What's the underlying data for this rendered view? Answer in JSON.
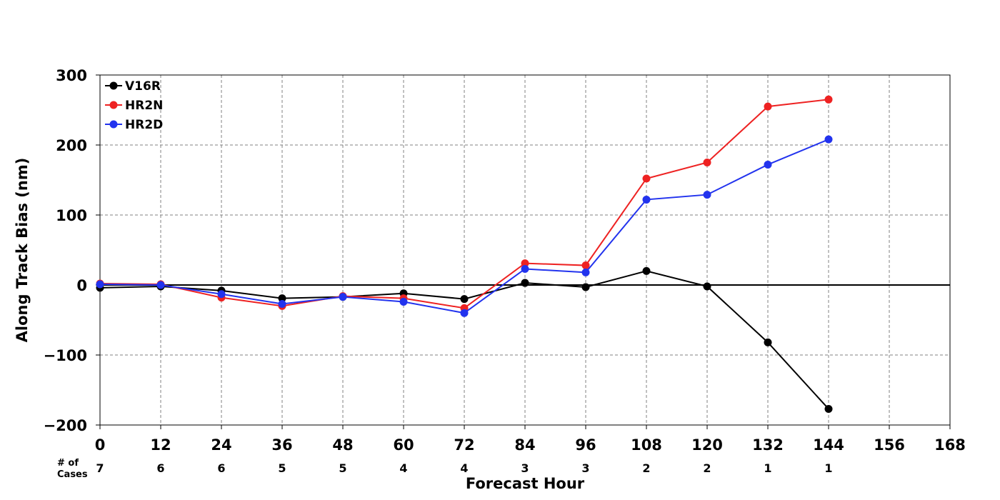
{
  "chart_data": {
    "type": "line",
    "title": "",
    "xlabel": "Forecast Hour",
    "ylabel": "Along Track Bias (nm)",
    "xlim": [
      0,
      168
    ],
    "ylim": [
      -200,
      300
    ],
    "x_ticks": [
      0,
      12,
      24,
      36,
      48,
      60,
      72,
      84,
      96,
      108,
      120,
      132,
      144,
      156,
      168
    ],
    "x_tick_labels": [
      "0",
      "12",
      "24",
      "36",
      "48",
      "60",
      "72",
      "84",
      "96",
      "108",
      "120",
      "132",
      "144",
      "156",
      "168"
    ],
    "y_ticks": [
      -200,
      -100,
      0,
      100,
      200,
      300
    ],
    "y_tick_labels": [
      "−200",
      "−100",
      "0",
      "100",
      "200",
      "300"
    ],
    "grid": true,
    "zero_line": true,
    "legend_position": "top-left",
    "cases_label_line1": "# of",
    "cases_label_line2": "Cases",
    "case_hours": [
      0,
      12,
      24,
      36,
      48,
      60,
      72,
      84,
      96,
      108,
      120,
      132,
      144
    ],
    "case_counts": [
      "7",
      "6",
      "6",
      "5",
      "5",
      "4",
      "4",
      "3",
      "3",
      "2",
      "2",
      "1",
      "1"
    ],
    "series": [
      {
        "name": "V16R",
        "color": "#000000",
        "x": [
          0,
          12,
          24,
          36,
          48,
          60,
          72,
          84,
          96,
          108,
          120,
          132,
          144
        ],
        "y": [
          -4,
          -2,
          -8,
          -19,
          -17,
          -12,
          -20,
          3,
          -3,
          20,
          -2,
          -82,
          -177
        ]
      },
      {
        "name": "HR2N",
        "color": "#ee2222",
        "x": [
          0,
          12,
          24,
          36,
          48,
          60,
          72,
          84,
          96,
          108,
          120,
          132,
          144
        ],
        "y": [
          2,
          1,
          -18,
          -30,
          -16,
          -19,
          -33,
          31,
          28,
          152,
          175,
          255,
          265
        ]
      },
      {
        "name": "HR2D",
        "color": "#2233ee",
        "x": [
          0,
          12,
          24,
          36,
          48,
          60,
          72,
          84,
          96,
          108,
          120,
          132,
          144
        ],
        "y": [
          1,
          0,
          -13,
          -27,
          -17,
          -24,
          -40,
          23,
          18,
          122,
          129,
          172,
          208
        ]
      }
    ]
  }
}
